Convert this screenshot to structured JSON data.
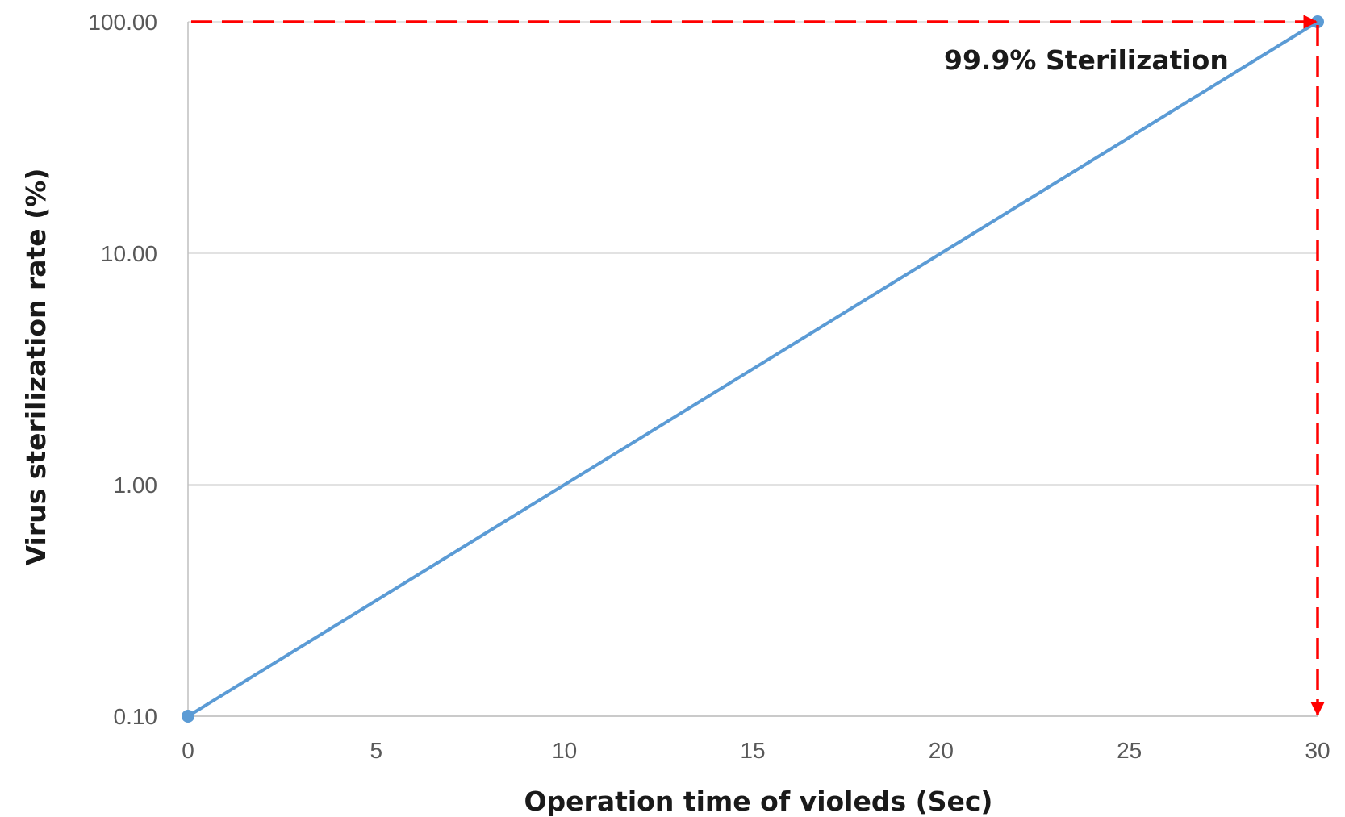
{
  "chart_data": {
    "type": "line",
    "xlabel": "Operation time of violeds (Sec)",
    "ylabel": "Virus sterilization rate (%)",
    "xlim": [
      0,
      30
    ],
    "ylim": [
      0.1,
      100
    ],
    "y_scale": "log",
    "x_ticks": [
      0,
      5,
      10,
      15,
      20,
      25,
      30
    ],
    "x_tick_labels": [
      "0",
      "5",
      "10",
      "15",
      "20",
      "25",
      "30"
    ],
    "y_ticks": [
      0.1,
      1,
      10,
      100
    ],
    "y_tick_labels": [
      "0.10",
      "1.00",
      "10.00",
      "100.00"
    ],
    "grid": "horizontal",
    "series": [
      {
        "x": [
          0,
          30
        ],
        "y": [
          0.1,
          100
        ],
        "color": "#5b9bd5"
      }
    ],
    "annotations": [
      {
        "text": "99.9% Sterilization",
        "x": 30,
        "y": 100,
        "color": "#ff0000"
      }
    ]
  }
}
